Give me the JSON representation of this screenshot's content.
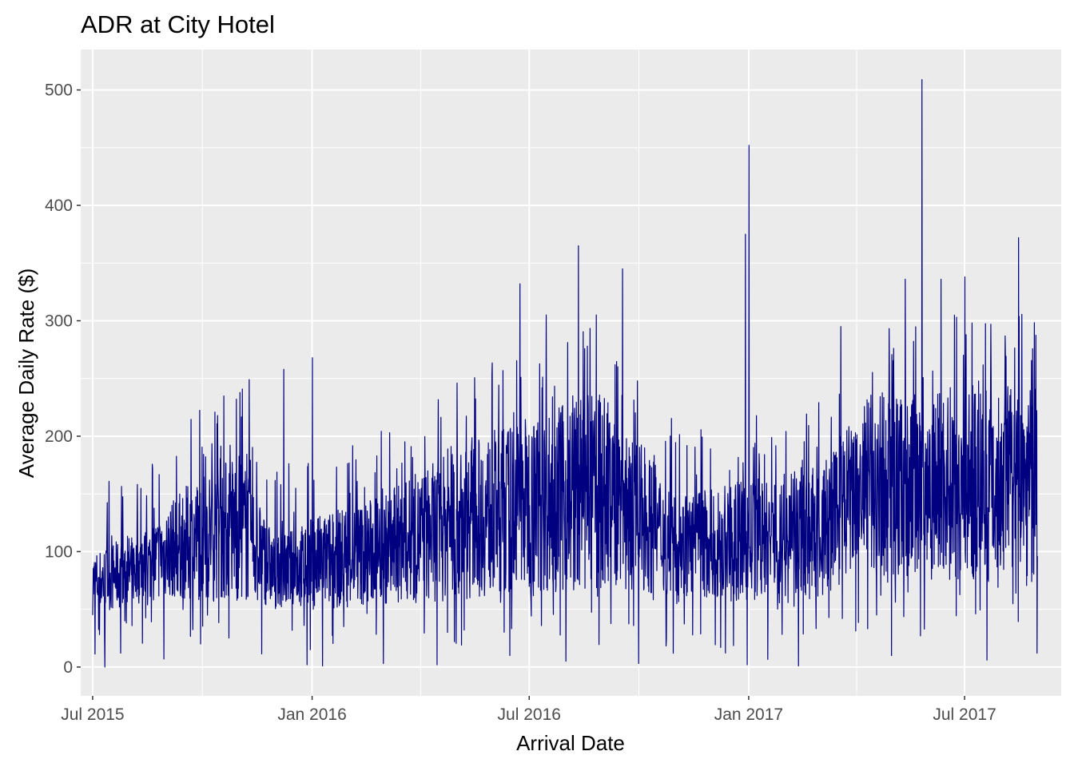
{
  "chart_data": {
    "type": "line",
    "title": "ADR at City Hotel",
    "xlabel": "Arrival Date",
    "ylabel": "Average Daily Rate ($)",
    "xlim": [
      "2015-06-21",
      "2017-09-20"
    ],
    "ylim": [
      -25,
      535
    ],
    "x_ticks": [
      {
        "date": "2015-07-01",
        "label": "Jul 2015"
      },
      {
        "date": "2016-01-01",
        "label": "Jan 2016"
      },
      {
        "date": "2016-07-01",
        "label": "Jul 2016"
      },
      {
        "date": "2017-01-01",
        "label": "Jan 2017"
      },
      {
        "date": "2017-07-01",
        "label": "Jul 2017"
      }
    ],
    "y_ticks": [
      0,
      100,
      200,
      300,
      400,
      500
    ],
    "grid": true,
    "series": [
      {
        "color": "#000080",
        "x_start": "2015-07-01",
        "x_end": "2017-08-31",
        "low_envelope": [
          {
            "date": "2015-07-01",
            "value": 45
          },
          {
            "date": "2015-09-01",
            "value": 60
          },
          {
            "date": "2016-01-01",
            "value": 50
          },
          {
            "date": "2016-04-01",
            "value": 55
          },
          {
            "date": "2016-07-01",
            "value": 65
          },
          {
            "date": "2016-10-01",
            "value": 65
          },
          {
            "date": "2017-01-01",
            "value": 55
          },
          {
            "date": "2017-03-01",
            "value": 55
          },
          {
            "date": "2017-04-01",
            "value": 80
          },
          {
            "date": "2017-08-31",
            "value": 70
          }
        ],
        "high_envelope": [
          {
            "date": "2015-07-01",
            "value": 100
          },
          {
            "date": "2015-08-15",
            "value": 120
          },
          {
            "date": "2015-09-15",
            "value": 155
          },
          {
            "date": "2015-11-01",
            "value": 190
          },
          {
            "date": "2015-12-01",
            "value": 110
          },
          {
            "date": "2016-01-01",
            "value": 130
          },
          {
            "date": "2016-03-01",
            "value": 150
          },
          {
            "date": "2016-05-01",
            "value": 190
          },
          {
            "date": "2016-07-01",
            "value": 220
          },
          {
            "date": "2016-09-01",
            "value": 240
          },
          {
            "date": "2016-11-01",
            "value": 150
          },
          {
            "date": "2017-01-01",
            "value": 160
          },
          {
            "date": "2017-03-01",
            "value": 175
          },
          {
            "date": "2017-04-15",
            "value": 240
          },
          {
            "date": "2017-08-31",
            "value": 250
          }
        ],
        "spikes": [
          {
            "date": "2015-11-09",
            "value": 249
          },
          {
            "date": "2015-12-08",
            "value": 258
          },
          {
            "date": "2016-01-01",
            "value": 268
          },
          {
            "date": "2016-06-23",
            "value": 332
          },
          {
            "date": "2016-08-11",
            "value": 365
          },
          {
            "date": "2016-09-17",
            "value": 345
          },
          {
            "date": "2016-12-29",
            "value": 375
          },
          {
            "date": "2017-01-01",
            "value": 452
          },
          {
            "date": "2017-05-12",
            "value": 336
          },
          {
            "date": "2017-05-26",
            "value": 509
          },
          {
            "date": "2017-06-11",
            "value": 336
          },
          {
            "date": "2017-07-01",
            "value": 338
          },
          {
            "date": "2017-08-15",
            "value": 372
          },
          {
            "date": "2016-07-15",
            "value": 305
          },
          {
            "date": "2016-08-26",
            "value": 305
          },
          {
            "date": "2017-03-19",
            "value": 295
          }
        ],
        "dips": [
          {
            "date": "2015-08-30",
            "value": 7
          },
          {
            "date": "2015-12-28",
            "value": 2
          },
          {
            "date": "2016-01-10",
            "value": 1
          },
          {
            "date": "2016-03-01",
            "value": 3
          },
          {
            "date": "2016-04-15",
            "value": 2
          },
          {
            "date": "2016-06-15",
            "value": 10
          },
          {
            "date": "2016-08-01",
            "value": 5
          },
          {
            "date": "2016-10-01",
            "value": 3
          },
          {
            "date": "2016-12-31",
            "value": 2
          },
          {
            "date": "2017-02-12",
            "value": 1
          },
          {
            "date": "2017-05-01",
            "value": 10
          },
          {
            "date": "2017-07-20",
            "value": 6
          },
          {
            "date": "2017-08-31",
            "value": 12
          }
        ]
      }
    ]
  }
}
